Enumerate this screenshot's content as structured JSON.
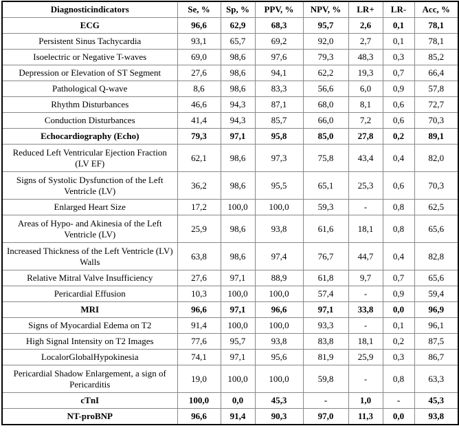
{
  "table": {
    "header": [
      "Diagnosticindicators",
      "Se, %",
      "Sp, %",
      "PPV, %",
      "NPV, %",
      "LR+",
      "LR-",
      "Acc, %"
    ],
    "groups": [
      {
        "summary": [
          "ECG",
          "96,6",
          "62,9",
          "68,3",
          "95,7",
          "2,6",
          "0,1",
          "78,1"
        ],
        "rows": [
          [
            "Persistent Sinus Tachycardia",
            "93,1",
            "65,7",
            "69,2",
            "92,0",
            "2,7",
            "0,1",
            "78,1"
          ],
          [
            "Isoelectric or Negative T-waves",
            "69,0",
            "98,6",
            "97,6",
            "79,3",
            "48,3",
            "0,3",
            "85,2"
          ],
          [
            "Depression or Elevation of ST Segment",
            "27,6",
            "98,6",
            "94,1",
            "62,2",
            "19,3",
            "0,7",
            "66,4"
          ],
          [
            "Pathological Q-wave",
            "8,6",
            "98,6",
            "83,3",
            "56,6",
            "6,0",
            "0,9",
            "57,8"
          ],
          [
            "Rhythm Disturbances",
            "46,6",
            "94,3",
            "87,1",
            "68,0",
            "8,1",
            "0,6",
            "72,7"
          ],
          [
            "Conduction Disturbances",
            "41,4",
            "94,3",
            "85,7",
            "66,0",
            "7,2",
            "0,6",
            "70,3"
          ]
        ]
      },
      {
        "summary": [
          "Echocardiography (Echo)",
          "79,3",
          "97,1",
          "95,8",
          "85,0",
          "27,8",
          "0,2",
          "89,1"
        ],
        "rows": [
          [
            "Reduced Left Ventricular Ejection Fraction (LV EF)",
            "62,1",
            "98,6",
            "97,3",
            "75,8",
            "43,4",
            "0,4",
            "82,0"
          ],
          [
            "Signs of Systolic Dysfunction of the Left Ventricle (LV)",
            "36,2",
            "98,6",
            "95,5",
            "65,1",
            "25,3",
            "0,6",
            "70,3"
          ],
          [
            "Enlarged Heart Size",
            "17,2",
            "100,0",
            "100,0",
            "59,3",
            "-",
            "0,8",
            "62,5"
          ],
          [
            "Areas of Hypo- and Akinesia of the Left Ventricle (LV)",
            "25,9",
            "98,6",
            "93,8",
            "61,6",
            "18,1",
            "0,8",
            "65,6"
          ],
          [
            "Increased Thickness of the Left Ventricle (LV) Walls",
            "63,8",
            "98,6",
            "97,4",
            "76,7",
            "44,7",
            "0,4",
            "82,8"
          ],
          [
            "Relative Mitral Valve Insufficiency",
            "27,6",
            "97,1",
            "88,9",
            "61,8",
            "9,7",
            "0,7",
            "65,6"
          ],
          [
            "Pericardial Effusion",
            "10,3",
            "100,0",
            "100,0",
            "57,4",
            "-",
            "0,9",
            "59,4"
          ]
        ]
      },
      {
        "summary": [
          "MRI",
          "96,6",
          "97,1",
          "96,6",
          "97,1",
          "33,8",
          "0,0",
          "96,9"
        ],
        "rows": [
          [
            "Signs of Myocardial Edema on T2",
            "91,4",
            "100,0",
            "100,0",
            "93,3",
            "-",
            "0,1",
            "96,1"
          ],
          [
            "High Signal Intensity on T2 Images",
            "77,6",
            "95,7",
            "93,8",
            "83,8",
            "18,1",
            "0,2",
            "87,5"
          ],
          [
            "LocalorGlobalHypokinesia",
            "74,1",
            "97,1",
            "95,6",
            "81,9",
            "25,9",
            "0,3",
            "86,7"
          ],
          [
            "Pericardial Shadow Enlargement, a sign of Pericarditis",
            "19,0",
            "100,0",
            "100,0",
            "59,8",
            "-",
            "0,8",
            "63,3"
          ]
        ]
      },
      {
        "summary": [
          "cTnI",
          "100,0",
          "0,0",
          "45,3",
          "-",
          "1,0",
          "-",
          "45,3"
        ],
        "rows": []
      },
      {
        "summary": [
          "NT-proBNP",
          "96,6",
          "91,4",
          "90,3",
          "97,0",
          "11,3",
          "0,0",
          "93,8"
        ],
        "rows": []
      }
    ]
  }
}
